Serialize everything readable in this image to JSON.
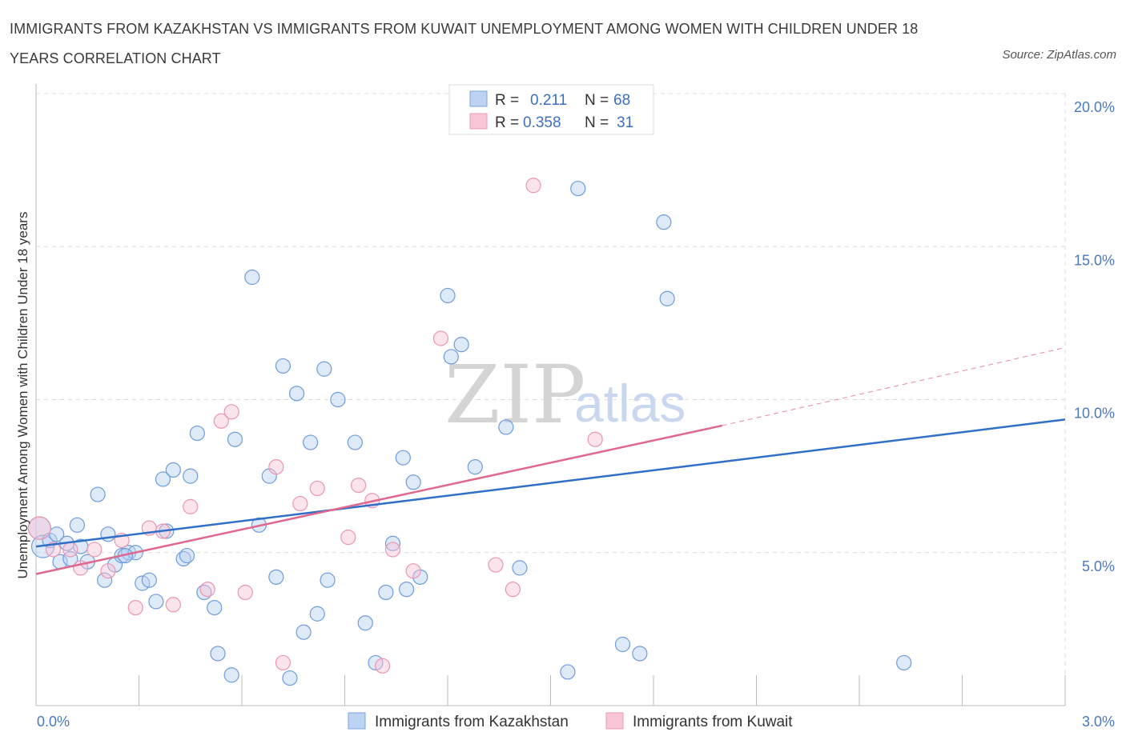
{
  "title": "IMMIGRANTS FROM KAZAKHSTAN VS IMMIGRANTS FROM KUWAIT UNEMPLOYMENT AMONG WOMEN WITH CHILDREN UNDER 18 YEARS CORRELATION CHART",
  "source": "Source: ZipAtlas.com",
  "watermark": {
    "zip": "ZIP",
    "atlas": "atlas"
  },
  "legend_top": {
    "rows": [
      {
        "r_label": "R =",
        "r_value": "0.211",
        "n_label": "N =",
        "n_value": "68"
      },
      {
        "r_label": "R =",
        "r_value": "0.358",
        "n_label": "N =",
        "n_value": "31"
      }
    ]
  },
  "legend_bottom": {
    "items": [
      "Immigrants from Kazakhstan",
      "Immigrants from Kuwait"
    ]
  },
  "chart_data": {
    "type": "scatter",
    "xlabel": "",
    "ylabel": "Unemployment Among Women with Children Under 18 years",
    "xlim": [
      0,
      3.0
    ],
    "ylim": [
      0,
      20.0
    ],
    "x_tick_labels": [
      "0.0%",
      "3.0%"
    ],
    "y_tick_values": [
      5,
      10,
      15,
      20
    ],
    "y_tick_labels": [
      "5.0%",
      "10.0%",
      "15.0%",
      "20.0%"
    ],
    "grid": true,
    "legend_position": "top-center",
    "colors": {
      "kazakhstan": "#6fa0e0",
      "kuwait": "#f0a0bc",
      "kaz_line": "#2f6fc8",
      "kuw_line": "#e0688f",
      "axis_text": "#4a78c2"
    },
    "series": [
      {
        "name": "Immigrants from Kazakhstan",
        "color": "#6fa0e0",
        "trend": {
          "x0": 0.0,
          "y0": 5.2,
          "x1": 3.0,
          "y1": 9.35
        },
        "points": [
          [
            0.01,
            5.8
          ],
          [
            0.02,
            5.2
          ],
          [
            0.04,
            5.4
          ],
          [
            0.06,
            5.6
          ],
          [
            0.07,
            4.7
          ],
          [
            0.09,
            5.3
          ],
          [
            0.1,
            4.8
          ],
          [
            0.12,
            5.9
          ],
          [
            0.13,
            5.2
          ],
          [
            0.18,
            6.9
          ],
          [
            0.2,
            4.1
          ],
          [
            0.21,
            5.6
          ],
          [
            0.23,
            4.6
          ],
          [
            0.25,
            4.9
          ],
          [
            0.27,
            5.0
          ],
          [
            0.29,
            5.0
          ],
          [
            0.31,
            4.0
          ],
          [
            0.33,
            4.1
          ],
          [
            0.35,
            3.4
          ],
          [
            0.37,
            7.4
          ],
          [
            0.4,
            7.7
          ],
          [
            0.43,
            4.8
          ],
          [
            0.44,
            4.9
          ],
          [
            0.45,
            7.5
          ],
          [
            0.47,
            8.9
          ],
          [
            0.49,
            3.7
          ],
          [
            0.52,
            3.2
          ],
          [
            0.53,
            1.7
          ],
          [
            0.57,
            1.0
          ],
          [
            0.58,
            8.7
          ],
          [
            0.63,
            14.0
          ],
          [
            0.65,
            5.9
          ],
          [
            0.68,
            7.5
          ],
          [
            0.7,
            4.2
          ],
          [
            0.72,
            11.1
          ],
          [
            0.74,
            0.9
          ],
          [
            0.76,
            10.2
          ],
          [
            0.78,
            2.4
          ],
          [
            0.8,
            8.6
          ],
          [
            0.82,
            3.0
          ],
          [
            0.84,
            11.0
          ],
          [
            0.85,
            4.1
          ],
          [
            0.88,
            10.0
          ],
          [
            0.93,
            8.6
          ],
          [
            0.96,
            2.7
          ],
          [
            0.99,
            1.4
          ],
          [
            1.02,
            3.7
          ],
          [
            1.04,
            5.3
          ],
          [
            1.07,
            8.1
          ],
          [
            1.08,
            3.8
          ],
          [
            1.1,
            7.3
          ],
          [
            1.12,
            4.2
          ],
          [
            1.2,
            13.4
          ],
          [
            1.21,
            11.4
          ],
          [
            1.24,
            11.8
          ],
          [
            1.28,
            7.8
          ],
          [
            1.37,
            9.1
          ],
          [
            1.41,
            4.5
          ],
          [
            1.55,
            1.1
          ],
          [
            1.58,
            16.9
          ],
          [
            1.71,
            2.0
          ],
          [
            1.76,
            1.7
          ],
          [
            1.83,
            15.8
          ],
          [
            1.84,
            13.3
          ],
          [
            2.53,
            1.4
          ],
          [
            0.15,
            4.7
          ],
          [
            0.26,
            4.9
          ],
          [
            0.38,
            5.7
          ]
        ]
      },
      {
        "name": "Immigrants from Kuwait",
        "color": "#f0a0bc",
        "trend": {
          "x0": 0.0,
          "y0": 4.3,
          "x1": 2.0,
          "y1": 9.15
        },
        "trend_ext": {
          "x0": 2.0,
          "y0": 9.15,
          "x1": 3.0,
          "y1": 11.7
        },
        "points": [
          [
            0.01,
            5.8
          ],
          [
            0.05,
            5.1
          ],
          [
            0.1,
            5.1
          ],
          [
            0.13,
            4.5
          ],
          [
            0.17,
            5.1
          ],
          [
            0.21,
            4.4
          ],
          [
            0.25,
            5.4
          ],
          [
            0.29,
            3.2
          ],
          [
            0.33,
            5.8
          ],
          [
            0.37,
            5.7
          ],
          [
            0.4,
            3.3
          ],
          [
            0.45,
            6.5
          ],
          [
            0.5,
            3.8
          ],
          [
            0.54,
            9.3
          ],
          [
            0.57,
            9.6
          ],
          [
            0.61,
            3.7
          ],
          [
            0.7,
            7.8
          ],
          [
            0.72,
            1.4
          ],
          [
            0.77,
            6.6
          ],
          [
            0.82,
            7.1
          ],
          [
            0.91,
            5.5
          ],
          [
            0.94,
            7.2
          ],
          [
            0.98,
            6.7
          ],
          [
            1.01,
            1.3
          ],
          [
            1.04,
            5.1
          ],
          [
            1.1,
            4.4
          ],
          [
            1.18,
            12.0
          ],
          [
            1.34,
            4.6
          ],
          [
            1.39,
            3.8
          ],
          [
            1.45,
            17.0
          ],
          [
            1.63,
            8.7
          ]
        ]
      }
    ]
  }
}
